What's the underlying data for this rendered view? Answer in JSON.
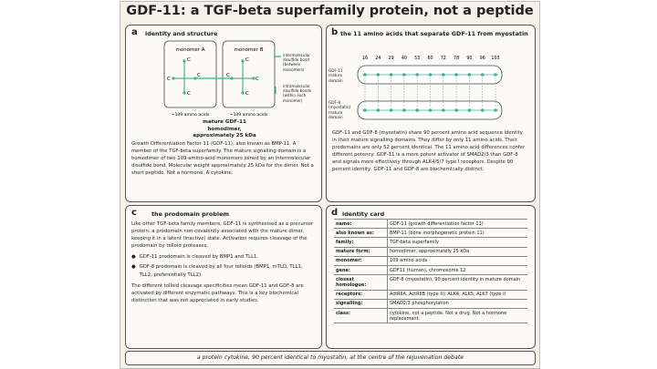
{
  "title": "GDF-11: a TGF-beta superfamily protein, not a peptide",
  "panels": {
    "a": {
      "letter": "a",
      "title": "identity and structure",
      "monomers": [
        {
          "label": "monomer A",
          "residues": [
            "C",
            "C",
            "C",
            "C"
          ],
          "size": "~109 amino acids"
        },
        {
          "label": "monomer B",
          "residues": [
            "C",
            "C",
            "C",
            "C"
          ],
          "size": "~109 amino acids"
        }
      ],
      "legend": [
        "intermolecular disulfide bond (between monomers)",
        "intramolecular disulfide bonds (within each monomer)"
      ],
      "caption": "mature GDF-11 homodimer, approximately 25 kDa",
      "text": "Growth Differentiation Factor 11 (GDF-11), also known as BMP-11. A member of the TGF-beta superfamily. The mature signalling domain is a homodimer of two 109-amino-acid monomers joined by an intermolecular disulfide bond. Molecular weight approximately 25 kDa for the dimer. Not a short peptide. Not a hormone. A cytokine."
    },
    "b": {
      "letter": "b",
      "title": "the 11 amino acids that separate GDF-11 from myostatin",
      "positions": [
        16,
        24,
        29,
        40,
        53,
        60,
        72,
        78,
        90,
        96,
        103
      ],
      "rows": [
        "GDF-11 mature domain",
        "GDF-8 (myostatin) mature domain"
      ],
      "text": "GDF-11 and GDF-8 (myostatin) share 90 percent amino acid sequence identity in their mature signalling domains. They differ by only 11 amino acids. Their prodomains are only 52 percent identical. The 11 amino acid differences confer different potency: GDF-11 is a more potent activator of SMAD2/3 than GDF-8 and signals more effectively through ALK4/5/7 type I receptors. Despite 90 percent identity, GDF-11 and GDF-8 are biochemically distinct."
    },
    "c": {
      "letter": "c",
      "title": "the prodomain problem",
      "intro": "Like other TGF-beta family members, GDF-11 is synthesised as a precursor protein: a prodomain non-covalently associated with the mature dimer, keeping it in a latent (inactive) state. Activation requires cleavage of the prodomain by tolloid proteases.",
      "bullets": [
        "GDF-11 prodomain is cleaved by BMP1 and TLL1.",
        "GDF-8 prodomain is cleaved by all four tolloids (BMP1, mTLD, TLL1, TLL2, preferentially TLL2)."
      ],
      "outro": "The different tolloid cleavage specificities mean GDF-11 and GDF-8 are activated by different enzymatic pathways. This is a key biochemical distinction that was not appreciated in early studies."
    },
    "d": {
      "letter": "d",
      "title": "identity card",
      "rows": [
        [
          "name:",
          "GDF-11 (growth differentiation factor 11)"
        ],
        [
          "also known as:",
          "BMP-11 (bone morphogenetic protein 11)"
        ],
        [
          "family:",
          "TGF-beta superfamily"
        ],
        [
          "mature form:",
          "homodimer, approximately 25 kDa"
        ],
        [
          "monomer:",
          "109 amino acids"
        ],
        [
          "gene:",
          "GDF11 (human), chromosome 12"
        ],
        [
          "closest homologue:",
          "GDF-8 (myostatin), 90 percent identity in mature domain"
        ],
        [
          "receptors:",
          "ActRIIA, ActRIIB (type II); ALK4, ALK5, ALK7 (type I)"
        ],
        [
          "signalling:",
          "SMAD2/3 phosphorylation"
        ],
        [
          "class:",
          "cytokine, not a peptide. Not a drug. Not a hormone replacement."
        ]
      ]
    }
  },
  "footer": "a protein cytokine, 90 percent identical to myostatin, at the centre of the rejuvenation debate"
}
